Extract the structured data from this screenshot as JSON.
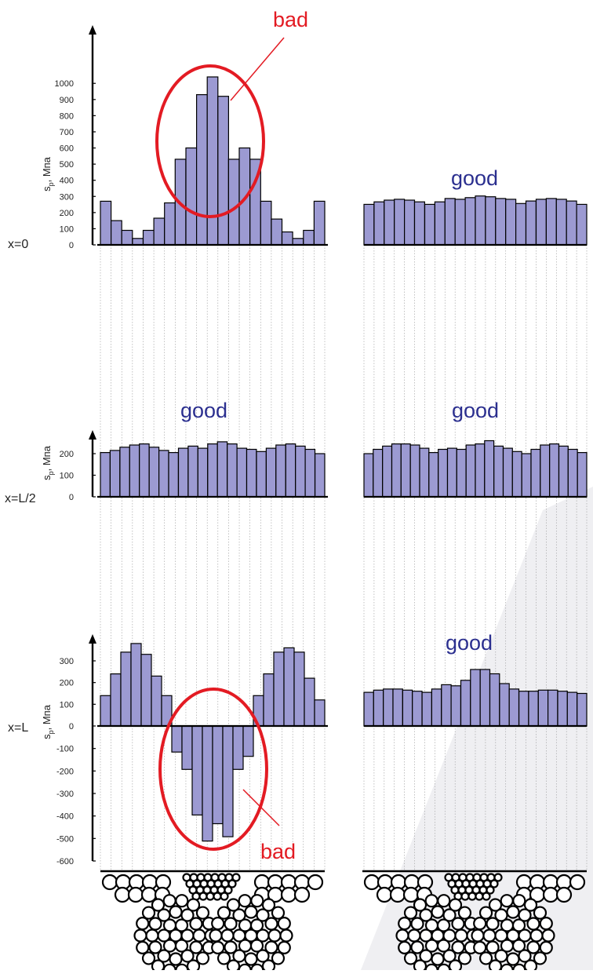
{
  "labels": {
    "bad": "bad",
    "good": "good",
    "x0": "x=0",
    "xhalf": "x=L/2",
    "xL": "x=L",
    "ylabel_main": "s",
    "ylabel_sub": "p",
    "ylabel_unit": ", Мпа"
  },
  "colors": {
    "bar_fill": "#9c9ad2",
    "bar_stroke": "#000000",
    "bad_red": "#e31b23",
    "good_blue": "#2b2f8f",
    "guide_line": "#9a9a9a"
  },
  "chart_data": [
    {
      "id": "x0-left",
      "type": "bar",
      "row_label": "x=0",
      "annotation": "bad",
      "ylabel": "s_p, Мпа",
      "ylim": [
        0,
        1000
      ],
      "yticks": [
        0,
        100,
        200,
        300,
        400,
        500,
        600,
        700,
        800,
        900,
        1000
      ],
      "values": [
        270,
        150,
        90,
        40,
        90,
        165,
        260,
        530,
        600,
        930,
        1040,
        920,
        530,
        600,
        530,
        270,
        160,
        80,
        40,
        90,
        270
      ]
    },
    {
      "id": "x0-right",
      "type": "bar",
      "annotation": "good",
      "ylim": [
        0,
        1000
      ],
      "values": [
        240,
        255,
        265,
        270,
        265,
        255,
        240,
        255,
        275,
        270,
        280,
        290,
        285,
        275,
        270,
        245,
        260,
        270,
        275,
        270,
        260,
        240
      ]
    },
    {
      "id": "xhalf-left",
      "type": "bar",
      "row_label": "x=L/2",
      "annotation": "good",
      "ylabel": "s_p, Мпа",
      "ylim": [
        0,
        270
      ],
      "yticks": [
        0,
        100,
        200
      ],
      "values": [
        205,
        215,
        230,
        240,
        245,
        230,
        215,
        205,
        225,
        235,
        225,
        245,
        255,
        245,
        225,
        220,
        210,
        225,
        240,
        245,
        235,
        220,
        200
      ]
    },
    {
      "id": "xhalf-right",
      "type": "bar",
      "annotation": "good",
      "ylim": [
        0,
        270
      ],
      "values": [
        200,
        220,
        235,
        245,
        245,
        240,
        225,
        205,
        220,
        225,
        220,
        240,
        245,
        260,
        235,
        225,
        210,
        200,
        220,
        240,
        245,
        235,
        220,
        205
      ]
    },
    {
      "id": "xL-left",
      "type": "bar",
      "row_label": "x=L",
      "annotation": "bad",
      "ylabel": "s_p, Мпа",
      "ylim": [
        -600,
        400
      ],
      "yticks": [
        -600,
        -500,
        -400,
        -300,
        -200,
        -100,
        0,
        100,
        200,
        300
      ],
      "values": [
        140,
        240,
        340,
        380,
        330,
        230,
        140,
        -120,
        -200,
        -410,
        -530,
        -450,
        -510,
        -200,
        -140,
        140,
        240,
        340,
        360,
        340,
        220,
        120
      ]
    },
    {
      "id": "xL-right",
      "type": "bar",
      "annotation": "good",
      "ylim": [
        -600,
        400
      ],
      "values": [
        155,
        165,
        170,
        170,
        165,
        160,
        155,
        170,
        190,
        185,
        210,
        260,
        260,
        240,
        195,
        170,
        160,
        160,
        165,
        165,
        160,
        155,
        150
      ]
    }
  ]
}
